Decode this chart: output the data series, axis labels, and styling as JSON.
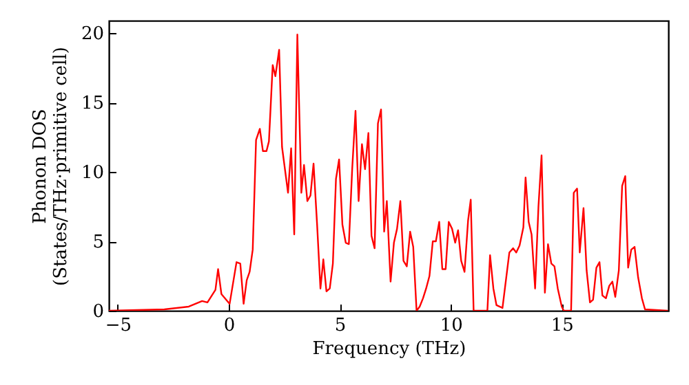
{
  "chart_data": {
    "type": "line",
    "xlabel": "Frequency (THz)",
    "ylabel": "Phonon DOS\n(States/THz·primitive cell)",
    "x": [
      -5.4,
      -2.9,
      -1.8,
      -1.2,
      -0.96,
      -0.6,
      -0.48,
      -0.33,
      0.04,
      0.35,
      0.52,
      0.67,
      0.81,
      0.94,
      1.08,
      1.23,
      1.4,
      1.54,
      1.7,
      1.81,
      1.98,
      2.1,
      2.27,
      2.4,
      2.67,
      2.81,
      2.95,
      3.09,
      3.27,
      3.39,
      3.54,
      3.68,
      3.82,
      3.98,
      4.13,
      4.26,
      4.4,
      4.55,
      4.69,
      4.83,
      4.97,
      5.12,
      5.27,
      5.41,
      5.56,
      5.71,
      5.85,
      6.0,
      6.14,
      6.29,
      6.43,
      6.57,
      6.72,
      6.86,
      7.0,
      7.12,
      7.29,
      7.44,
      7.58,
      7.73,
      7.87,
      8.02,
      8.17,
      8.31,
      8.46,
      8.6,
      8.75,
      8.89,
      9.04,
      9.19,
      9.33,
      9.48,
      9.62,
      9.77,
      9.91,
      10.06,
      10.2,
      10.33,
      10.47,
      10.62,
      10.78,
      10.9,
      11.03,
      11.65,
      11.77,
      11.92,
      12.06,
      12.33,
      12.64,
      12.81,
      12.95,
      13.1,
      13.27,
      13.37,
      13.51,
      13.64,
      13.8,
      13.95,
      14.09,
      14.24,
      14.38,
      14.53,
      14.67,
      14.82,
      15.0,
      15.09,
      15.42,
      15.54,
      15.69,
      15.81,
      15.98,
      16.12,
      16.27,
      16.41,
      16.56,
      16.7,
      16.83,
      16.99,
      17.14,
      17.28,
      17.41,
      17.57,
      17.72,
      17.86,
      17.99,
      18.13,
      18.28,
      18.44,
      18.61,
      18.75,
      19.78
    ],
    "series": [
      {
        "color": "#ff0000",
        "values": [
          0,
          0.1,
          0.3,
          0.7,
          0.6,
          1.5,
          3.0,
          1.2,
          0.5,
          3.5,
          3.4,
          0.5,
          2.2,
          2.8,
          4.4,
          12.3,
          13.1,
          11.5,
          11.5,
          12.2,
          17.7,
          16.9,
          18.8,
          11.8,
          8.5,
          11.7,
          5.5,
          19.9,
          8.5,
          10.5,
          7.9,
          8.3,
          10.6,
          6.2,
          1.6,
          3.7,
          1.4,
          1.6,
          3.4,
          9.5,
          10.9,
          6.2,
          4.9,
          4.8,
          10.2,
          14.4,
          7.9,
          12.0,
          10.2,
          12.8,
          5.4,
          4.5,
          13.5,
          14.5,
          5.7,
          7.9,
          2.1,
          4.9,
          5.9,
          7.9,
          3.6,
          3.2,
          5.7,
          4.6,
          0,
          0.3,
          0.9,
          1.6,
          2.5,
          5.0,
          5.0,
          6.4,
          3.0,
          3.0,
          6.4,
          5.9,
          4.9,
          5.8,
          3.6,
          2.8,
          6.5,
          8.0,
          0,
          0,
          4.0,
          1.6,
          0.4,
          0.2,
          4.2,
          4.5,
          4.2,
          4.7,
          6.0,
          9.6,
          6.4,
          5.5,
          1.6,
          7.5,
          11.2,
          1.3,
          4.8,
          3.4,
          3.2,
          1.6,
          0.3,
          0,
          0,
          8.5,
          8.8,
          4.2,
          7.4,
          2.9,
          0.6,
          0.8,
          3.1,
          3.5,
          1.1,
          0.9,
          1.8,
          2.1,
          1.0,
          2.9,
          9.0,
          9.7,
          3.1,
          4.4,
          4.6,
          2.4,
          0.9,
          0.1,
          0
        ]
      }
    ],
    "xlim": [
      -5.4,
      19.8
    ],
    "ylim": [
      0,
      20.9
    ],
    "xticks": [
      -5,
      0,
      5,
      10,
      15
    ],
    "yticks": [
      0,
      5,
      10,
      15,
      20
    ],
    "grid": false
  }
}
